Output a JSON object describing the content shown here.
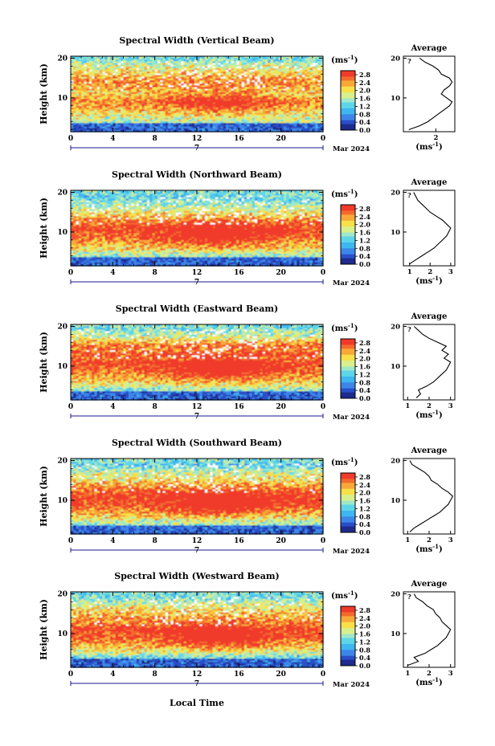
{
  "date_label": "Mar 2024",
  "xlabel": "Local Time",
  "colorbar": {
    "unit": "(ms",
    "unit_exp": "-1",
    "unit_close": ")",
    "ticks": [
      "2.8",
      "2.4",
      "2.0",
      "1.6",
      "1.2",
      "0.8",
      "0.4",
      "0.0"
    ],
    "tick_values": [
      2.8,
      2.4,
      2.0,
      1.6,
      1.2,
      0.8,
      0.4,
      0.0
    ],
    "colors": [
      "#1e2a8c",
      "#2a4fc8",
      "#3d86e8",
      "#3fb6f0",
      "#5fd6e8",
      "#9fe8c8",
      "#d8ef8c",
      "#f7e04a",
      "#f8a838",
      "#f36a2e",
      "#f03a2a"
    ]
  },
  "profile_xlabel": "(ms",
  "profile_xlabel_exp": "-1",
  "profile_xlabel_close": ")",
  "chart_data": [
    {
      "type": "heatmap",
      "title": "Spectral Width (Vertical Beam)",
      "ylabel": "Height (km)",
      "x_ticks": [
        "0",
        "4",
        "8",
        "12",
        "16",
        "20",
        "0"
      ],
      "x_tick_values": [
        0,
        4,
        8,
        12,
        16,
        20,
        24
      ],
      "xlim": [
        0,
        24
      ],
      "y_ticks": [
        "20",
        "10"
      ],
      "y_tick_values": [
        20,
        10
      ],
      "ylim": [
        1.5,
        20.5
      ],
      "colorbar_range": [
        0.0,
        3.0
      ],
      "inset_label": "?",
      "profile": {
        "title": "Average",
        "x_ticks": [
          "2"
        ],
        "x_tick_values": [
          2
        ],
        "xlim": [
          0.8,
          2.7
        ],
        "heights": [
          2,
          3,
          4,
          5,
          6,
          7,
          8,
          9,
          10,
          11,
          12,
          13,
          14,
          15,
          16,
          17,
          18,
          19,
          20
        ],
        "values": [
          1.0,
          1.4,
          1.7,
          1.9,
          2.1,
          2.3,
          2.5,
          2.6,
          2.4,
          2.2,
          2.3,
          2.5,
          2.6,
          2.5,
          2.2,
          2.1,
          1.9,
          1.6,
          1.4
        ]
      }
    },
    {
      "type": "heatmap",
      "title": "Spectral Width (Northward Beam)",
      "ylabel": "Height (km)",
      "x_ticks": [
        "0",
        "4",
        "8",
        "12",
        "16",
        "20",
        "0"
      ],
      "x_tick_values": [
        0,
        4,
        8,
        12,
        16,
        20,
        24
      ],
      "xlim": [
        0,
        24
      ],
      "y_ticks": [
        "20",
        "10"
      ],
      "y_tick_values": [
        20,
        10
      ],
      "ylim": [
        1.5,
        20.5
      ],
      "colorbar_range": [
        0.0,
        3.0
      ],
      "inset_label": "?",
      "profile": {
        "title": "Average",
        "x_ticks": [
          "1",
          "2",
          "3"
        ],
        "x_tick_values": [
          1,
          2,
          3
        ],
        "xlim": [
          0.7,
          3.2
        ],
        "heights": [
          2,
          3,
          4,
          5,
          6,
          7,
          8,
          9,
          10,
          11,
          12,
          13,
          14,
          15,
          16,
          17,
          18,
          19,
          20
        ],
        "values": [
          1.0,
          1.3,
          1.6,
          1.9,
          2.2,
          2.4,
          2.6,
          2.8,
          2.9,
          3.0,
          2.8,
          2.6,
          2.3,
          2.0,
          1.8,
          1.6,
          1.4,
          1.3,
          1.2
        ]
      }
    },
    {
      "type": "heatmap",
      "title": "Spectral Width (Eastward Beam)",
      "ylabel": "Height (km)",
      "x_ticks": [
        "0",
        "4",
        "8",
        "12",
        "16",
        "20",
        "0"
      ],
      "x_tick_values": [
        0,
        4,
        8,
        12,
        16,
        20,
        24
      ],
      "xlim": [
        0,
        24
      ],
      "y_ticks": [
        "20",
        "10"
      ],
      "y_tick_values": [
        20,
        10
      ],
      "ylim": [
        1.5,
        20.5
      ],
      "colorbar_range": [
        0.0,
        3.0
      ],
      "inset_label": "?",
      "profile": {
        "title": "Average",
        "x_ticks": [
          "1",
          "2",
          "3"
        ],
        "x_tick_values": [
          1,
          2,
          3
        ],
        "xlim": [
          0.8,
          3.2
        ],
        "heights": [
          2,
          3,
          4,
          5,
          6,
          7,
          8,
          9,
          10,
          11,
          12,
          13,
          14,
          15,
          16,
          17,
          18,
          19,
          20
        ],
        "values": [
          1.4,
          1.6,
          1.5,
          1.9,
          2.2,
          2.4,
          2.6,
          2.8,
          2.9,
          3.0,
          2.7,
          2.9,
          2.6,
          2.8,
          2.4,
          2.0,
          1.7,
          1.5,
          1.3
        ]
      }
    },
    {
      "type": "heatmap",
      "title": "Spectral Width (Southward Beam)",
      "ylabel": "Height (km)",
      "x_ticks": [
        "0",
        "4",
        "8",
        "12",
        "16",
        "20",
        "0"
      ],
      "x_tick_values": [
        0,
        4,
        8,
        12,
        16,
        20,
        24
      ],
      "xlim": [
        0,
        24
      ],
      "y_ticks": [
        "20",
        "10"
      ],
      "y_tick_values": [
        20,
        10
      ],
      "ylim": [
        1.5,
        20.5
      ],
      "colorbar_range": [
        0.0,
        3.0
      ],
      "inset_label": "",
      "profile": {
        "title": "Average",
        "x_ticks": [
          "1",
          "2",
          "3"
        ],
        "x_tick_values": [
          1,
          2,
          3
        ],
        "xlim": [
          0.8,
          3.2
        ],
        "heights": [
          2,
          3,
          4,
          5,
          6,
          7,
          8,
          9,
          10,
          11,
          12,
          13,
          14,
          15,
          16,
          17,
          18,
          19,
          20
        ],
        "values": [
          1.1,
          1.3,
          1.6,
          1.9,
          2.2,
          2.5,
          2.7,
          2.9,
          3.0,
          3.1,
          2.9,
          2.6,
          2.4,
          2.1,
          2.0,
          1.8,
          1.5,
          1.2,
          1.1
        ]
      }
    },
    {
      "type": "heatmap",
      "title": "Spectral Width (Westward Beam)",
      "ylabel": "Height (km)",
      "x_ticks": [
        "0",
        "4",
        "8",
        "12",
        "16",
        "20",
        "0"
      ],
      "x_tick_values": [
        0,
        4,
        8,
        12,
        16,
        20,
        24
      ],
      "xlim": [
        0,
        24
      ],
      "y_ticks": [
        "20",
        "10"
      ],
      "y_tick_values": [
        20,
        10
      ],
      "ylim": [
        1.5,
        20.5
      ],
      "colorbar_range": [
        0.0,
        3.0
      ],
      "inset_label": "?",
      "profile": {
        "title": "Average",
        "x_ticks": [
          "1",
          "2",
          "3"
        ],
        "x_tick_values": [
          1,
          2,
          3
        ],
        "xlim": [
          0.8,
          3.2
        ],
        "heights": [
          2,
          3,
          4,
          5,
          6,
          7,
          8,
          9,
          10,
          11,
          12,
          13,
          14,
          15,
          16,
          17,
          18,
          19,
          20
        ],
        "values": [
          1.0,
          1.5,
          1.3,
          1.8,
          2.1,
          2.4,
          2.6,
          2.8,
          2.9,
          3.0,
          2.8,
          2.6,
          2.5,
          2.3,
          2.2,
          1.9,
          1.7,
          1.4,
          1.3
        ]
      }
    }
  ]
}
